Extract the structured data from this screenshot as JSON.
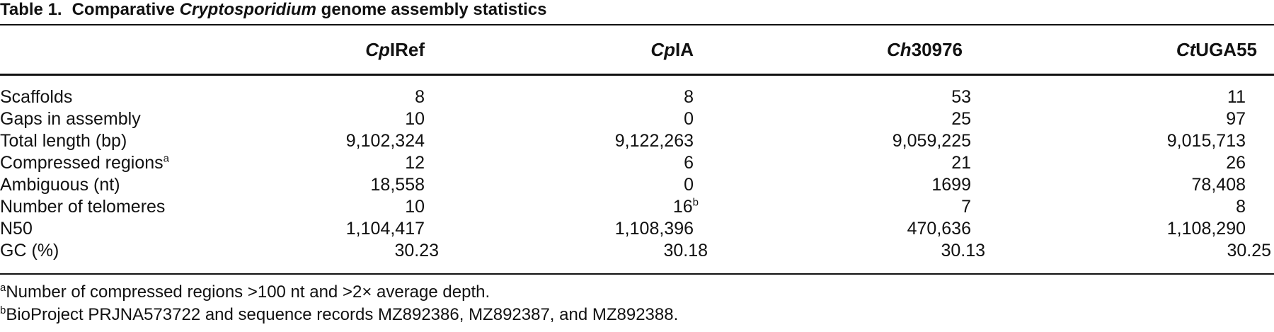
{
  "table": {
    "caption": {
      "label": "Table 1.",
      "title_pre": "Comparative ",
      "title_italic": "Cryptosporidium",
      "title_post": " genome assembly statistics"
    },
    "columns": [
      {
        "italic": "Cp",
        "rest": "IRef"
      },
      {
        "italic": "Cp",
        "rest": "IA"
      },
      {
        "italic": "Ch",
        "rest": "30976"
      },
      {
        "italic": "Ct",
        "rest": "UGA55"
      }
    ],
    "rows": [
      {
        "label": "Scaffolds",
        "label_sup": "",
        "cells": [
          {
            "v": "8",
            "s": ""
          },
          {
            "v": "8",
            "s": ""
          },
          {
            "v": "53",
            "s": ""
          },
          {
            "v": "11",
            "s": ""
          }
        ]
      },
      {
        "label": "Gaps in assembly",
        "label_sup": "",
        "cells": [
          {
            "v": "10",
            "s": ""
          },
          {
            "v": "0",
            "s": ""
          },
          {
            "v": "25",
            "s": ""
          },
          {
            "v": "97",
            "s": ""
          }
        ]
      },
      {
        "label": "Total length (bp)",
        "label_sup": "",
        "cells": [
          {
            "v": "9,102,324",
            "s": ""
          },
          {
            "v": "9,122,263",
            "s": ""
          },
          {
            "v": "9,059,225",
            "s": ""
          },
          {
            "v": "9,015,713",
            "s": ""
          }
        ]
      },
      {
        "label": "Compressed regions",
        "label_sup": "a",
        "cells": [
          {
            "v": "12",
            "s": ""
          },
          {
            "v": "6",
            "s": ""
          },
          {
            "v": "21",
            "s": ""
          },
          {
            "v": "26",
            "s": ""
          }
        ]
      },
      {
        "label": "Ambiguous (nt)",
        "label_sup": "",
        "cells": [
          {
            "v": "18,558",
            "s": ""
          },
          {
            "v": "0",
            "s": ""
          },
          {
            "v": "1699",
            "s": ""
          },
          {
            "v": "78,408",
            "s": ""
          }
        ]
      },
      {
        "label": "Number of telomeres",
        "label_sup": "",
        "cells": [
          {
            "v": "10",
            "s": ""
          },
          {
            "v": "16",
            "s": "b"
          },
          {
            "v": "7",
            "s": ""
          },
          {
            "v": "8",
            "s": ""
          }
        ]
      },
      {
        "label": "N50",
        "label_sup": "",
        "cells": [
          {
            "v": "1,104,417",
            "s": ""
          },
          {
            "v": "1,108,396",
            "s": ""
          },
          {
            "v": "470,636",
            "s": ""
          },
          {
            "v": "1,108,290",
            "s": ""
          }
        ]
      },
      {
        "label": "GC (%)",
        "label_sup": "",
        "cells": [
          {
            "v": "30.23",
            "s": ""
          },
          {
            "v": "30.18",
            "s": ""
          },
          {
            "v": "30.13",
            "s": ""
          },
          {
            "v": "30.25",
            "s": ""
          }
        ]
      }
    ],
    "footnotes": [
      {
        "mark": "a",
        "text": "Number of compressed regions >100 nt and >2× average depth."
      },
      {
        "mark": "b",
        "text": "BioProject PRJNA573722 and sequence records MZ892386, MZ892387, and MZ892388."
      }
    ]
  }
}
